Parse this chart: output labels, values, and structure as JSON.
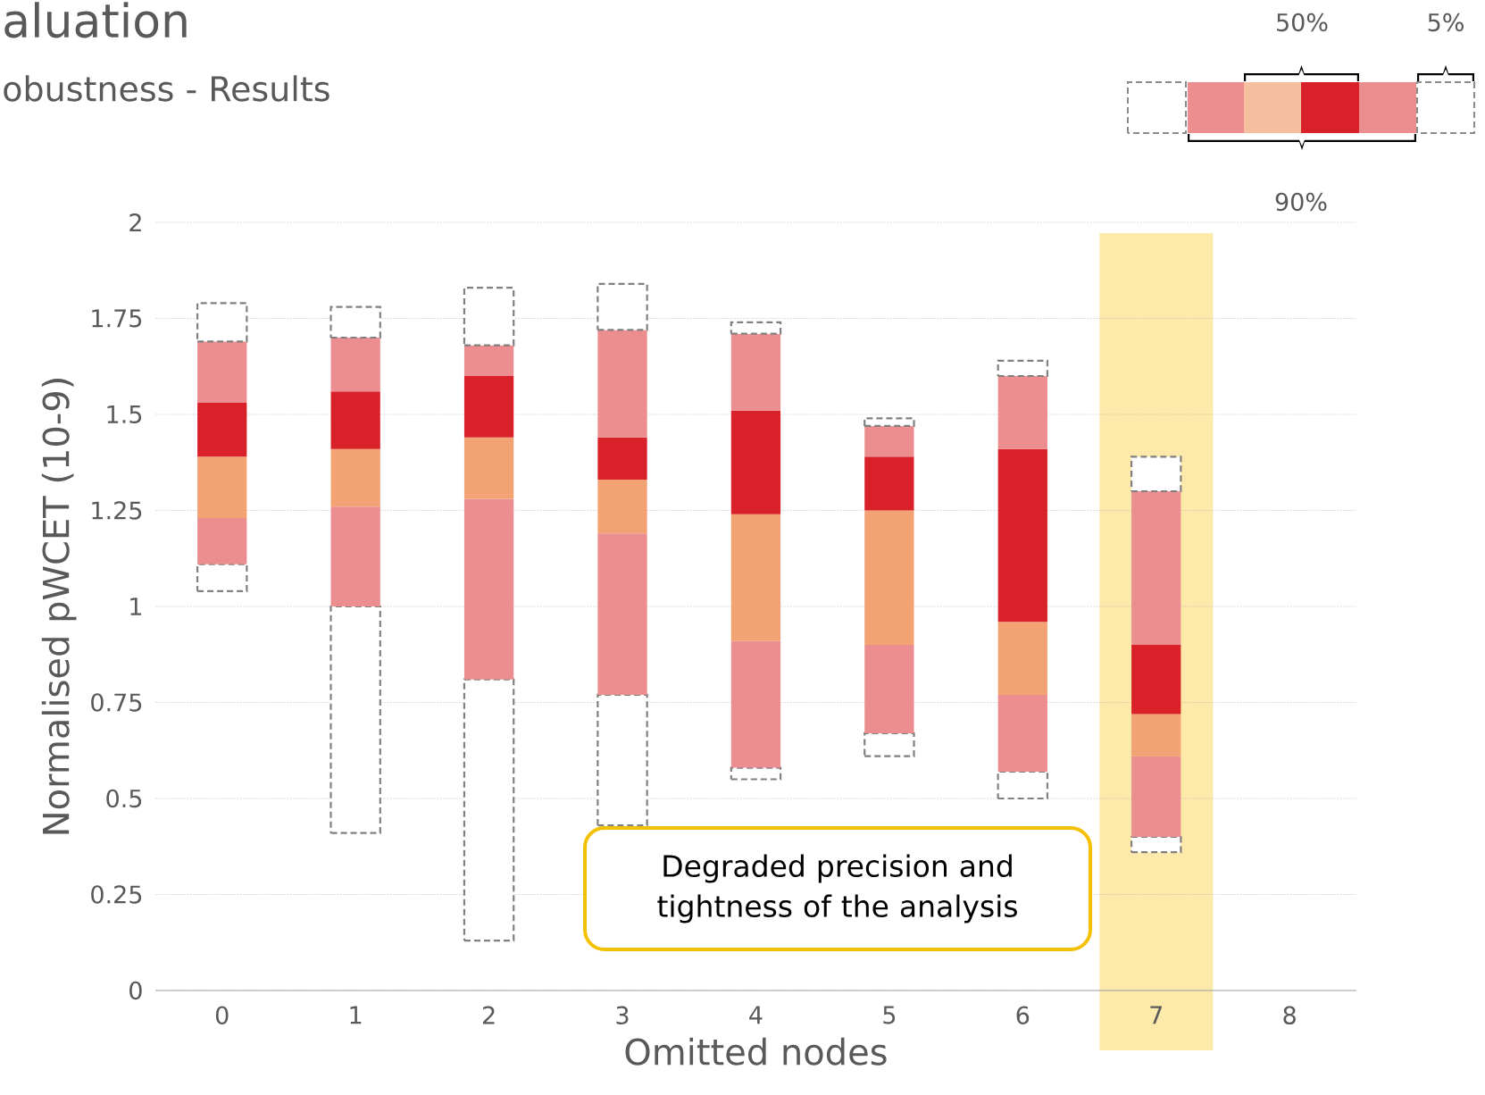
{
  "chart_data": {
    "type": "bar",
    "title": "aluation",
    "subtitle": "obustness - Results",
    "xlabel": "Omitted nodes",
    "ylabel": "Normalised pWCET (10-9)",
    "categories": [
      "0",
      "1",
      "2",
      "3",
      "4",
      "5",
      "6",
      "7",
      "8"
    ],
    "series": [
      {
        "color": "#808080",
        "line_style": "dashed",
        "base": [
          1.04,
          0.41,
          0.13,
          0.43,
          0.55,
          0.61,
          0.5,
          0.36,
          null
        ],
        "values": [
          0.07,
          0.59,
          0.68,
          0.34,
          0.03,
          0.06,
          0.07,
          0.04,
          null
        ]
      },
      {
        "color": "#ec8d90",
        "base": [
          1.11,
          1.0,
          0.81,
          0.77,
          0.58,
          0.67,
          0.57,
          0.4,
          null
        ],
        "values": [
          0.12,
          0.26,
          0.47,
          0.42,
          0.33,
          0.23,
          0.2,
          0.21,
          null
        ]
      },
      {
        "color": "#f2a273",
        "base": [
          1.23,
          1.26,
          1.28,
          1.19,
          0.91,
          0.9,
          0.77,
          0.61,
          null
        ],
        "values": [
          0.16,
          0.15,
          0.16,
          0.14,
          0.33,
          0.35,
          0.19,
          0.11,
          null
        ]
      },
      {
        "color": "#d9212a",
        "base": [
          1.39,
          1.41,
          1.44,
          1.33,
          1.24,
          1.25,
          0.96,
          0.72,
          null
        ],
        "values": [
          0.14,
          0.15,
          0.16,
          0.11,
          0.27,
          0.14,
          0.45,
          0.18,
          null
        ]
      },
      {
        "color": "#ec8d90",
        "base": [
          1.53,
          1.56,
          1.6,
          1.44,
          1.51,
          1.39,
          1.41,
          0.9,
          null
        ],
        "values": [
          0.16,
          0.14,
          0.08,
          0.28,
          0.2,
          0.08,
          0.19,
          0.4,
          null
        ]
      },
      {
        "color": "#808080",
        "line_style": "dashed",
        "base": [
          1.69,
          1.7,
          1.68,
          1.72,
          1.71,
          1.47,
          1.6,
          1.3,
          null
        ],
        "values": [
          0.1,
          0.08,
          0.15,
          0.12,
          0.03,
          0.02,
          0.04,
          0.09,
          null
        ]
      }
    ],
    "ylim": [
      0,
      2
    ],
    "yticks": [
      0,
      0.25,
      0.5,
      0.75,
      1,
      1.25,
      1.5,
      1.75,
      2
    ],
    "grid": "y",
    "bands": [
      {
        "axis": "x",
        "from": "7",
        "to": "7",
        "color": "#fde9a9"
      }
    ],
    "annotations": [
      "Degraded precision and tightness of the analysis",
      "50%",
      "5%",
      "90%"
    ]
  }
}
